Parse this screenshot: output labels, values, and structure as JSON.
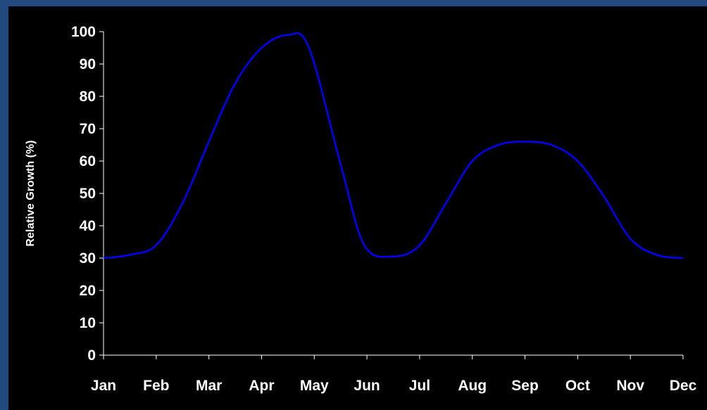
{
  "colors": {
    "frame": "#234a80",
    "background": "#000000",
    "axis": "#ffffff",
    "series": "#0000ff",
    "text": "#ffffff"
  },
  "chart_data": {
    "type": "line",
    "title": "",
    "xlabel": "",
    "ylabel": "Relative Growth (%)",
    "grid": false,
    "legend": "none",
    "smooth": true,
    "categories": [
      "Jan",
      "Feb",
      "Mar",
      "Apr",
      "May",
      "Jun",
      "Jul",
      "Aug",
      "Sep",
      "Oct",
      "Nov",
      "Dec"
    ],
    "ylim": [
      0,
      100
    ],
    "yticks": [
      0,
      10,
      20,
      30,
      40,
      50,
      60,
      70,
      80,
      90,
      100
    ],
    "series": [
      {
        "name": "",
        "x": [
          0,
          0.5,
          1,
          1.5,
          2,
          2.5,
          3,
          3.5,
          3.9,
          4.5,
          4.95,
          5.5,
          6,
          6.5,
          7,
          7.5,
          8,
          8.5,
          9,
          9.5,
          10,
          10.5,
          11
        ],
        "values": [
          30,
          31,
          34,
          47,
          66,
          84,
          95,
          99,
          95,
          59,
          34,
          30.5,
          34,
          47,
          60,
          65,
          66,
          65,
          60,
          49,
          36,
          31,
          30
        ]
      }
    ]
  }
}
